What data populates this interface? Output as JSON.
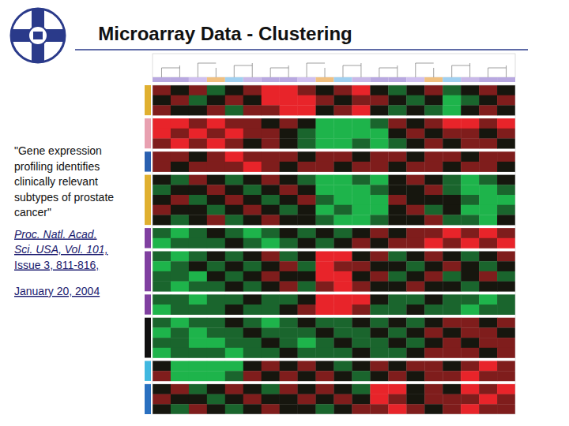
{
  "slide": {
    "title": "Microarray Data - Clustering",
    "caption": [
      "\"Gene expression",
      "profiling identifies",
      "clinically relevant",
      "subtypes of prostate",
      "cancer\""
    ],
    "citation": [
      "Proc. Natl. Acad.",
      "Sci. USA, Vol. 101,",
      "Issue 3, 811-816,"
    ],
    "date": "January 20, 2004"
  },
  "chart_data": {
    "type": "heatmap",
    "tick_labels": false,
    "color_range": [
      -2,
      2
    ],
    "bands": [
      {
        "color": "#e0b030",
        "cells": [
          [
            1,
            0,
            1,
            -1,
            0,
            1,
            2,
            2,
            1,
            0,
            1,
            2,
            0,
            -1,
            0,
            1,
            -1,
            0,
            1,
            0
          ],
          [
            0,
            1,
            -1,
            0,
            1,
            0,
            2,
            2,
            2,
            1,
            0,
            1,
            1,
            0,
            -1,
            0,
            -2,
            -1,
            0,
            1
          ],
          [
            1,
            0,
            0,
            1,
            -1,
            1,
            1,
            2,
            2,
            0,
            1,
            2,
            0,
            -1,
            0,
            -1,
            -2,
            0,
            1,
            0
          ]
        ]
      },
      {
        "color": "#e8a0b0",
        "cells": [
          [
            2,
            2,
            1,
            2,
            1,
            1,
            0,
            1,
            0,
            -2,
            -2,
            -2,
            -1,
            1,
            0,
            1,
            2,
            2,
            1,
            2
          ],
          [
            2,
            1,
            2,
            1,
            2,
            1,
            1,
            0,
            -1,
            -2,
            -2,
            -2,
            -2,
            0,
            1,
            0,
            1,
            1,
            0,
            1
          ],
          [
            1,
            2,
            1,
            2,
            1,
            0,
            1,
            0,
            -1,
            -2,
            -2,
            -1,
            -2,
            -1,
            0,
            1,
            0,
            1,
            1,
            0
          ]
        ]
      },
      {
        "color": "#2a60b0",
        "cells": [
          [
            1,
            1,
            0,
            1,
            2,
            1,
            1,
            1,
            0,
            1,
            1,
            0,
            1,
            1,
            0,
            1,
            1,
            0,
            1,
            1
          ],
          [
            1,
            0,
            1,
            1,
            1,
            2,
            1,
            0,
            1,
            1,
            0,
            1,
            1,
            0,
            1,
            1,
            0,
            1,
            1,
            0
          ]
        ]
      },
      {
        "color": "#e0b030",
        "cells": [
          [
            0,
            -1,
            1,
            0,
            -1,
            0,
            1,
            0,
            -1,
            -2,
            -2,
            -1,
            -2,
            0,
            1,
            0,
            -1,
            -2,
            -1,
            0
          ],
          [
            -1,
            0,
            0,
            1,
            0,
            -1,
            0,
            1,
            0,
            -2,
            -2,
            -2,
            -1,
            0,
            0,
            1,
            -1,
            -2,
            -2,
            -1
          ],
          [
            0,
            1,
            -1,
            0,
            1,
            0,
            -1,
            0,
            1,
            -1,
            -2,
            -2,
            -2,
            1,
            0,
            0,
            0,
            -1,
            -2,
            -2
          ],
          [
            1,
            0,
            0,
            -1,
            0,
            1,
            0,
            -1,
            0,
            -2,
            -1,
            -2,
            -2,
            0,
            1,
            -1,
            0,
            -2,
            -2,
            -1
          ],
          [
            0,
            -1,
            0,
            1,
            -1,
            0,
            1,
            0,
            0,
            -1,
            -2,
            -2,
            -1,
            0,
            0,
            1,
            -1,
            -1,
            -2,
            0
          ]
        ]
      },
      {
        "color": "#8040a0",
        "cells": [
          [
            -1,
            -2,
            -1,
            0,
            -1,
            -2,
            -1,
            0,
            -1,
            0,
            -1,
            0,
            1,
            0,
            1,
            1,
            2,
            1,
            2,
            1
          ],
          [
            -2,
            -1,
            -1,
            -1,
            0,
            -1,
            -2,
            -1,
            0,
            -1,
            0,
            1,
            0,
            1,
            1,
            2,
            1,
            2,
            1,
            2
          ]
        ]
      },
      {
        "color": "#8040a0",
        "cells": [
          [
            -1,
            -2,
            -1,
            0,
            -1,
            0,
            1,
            -1,
            0,
            2,
            2,
            0,
            1,
            -1,
            0,
            1,
            0,
            -1,
            0,
            1
          ],
          [
            -2,
            -1,
            0,
            -1,
            0,
            -1,
            0,
            1,
            -1,
            2,
            1,
            1,
            0,
            0,
            -1,
            0,
            1,
            0,
            -1,
            0
          ],
          [
            -1,
            -1,
            -2,
            0,
            -1,
            0,
            1,
            0,
            0,
            2,
            2,
            0,
            1,
            -1,
            0,
            1,
            -1,
            0,
            1,
            -1
          ],
          [
            -1,
            -2,
            -1,
            -1,
            0,
            -1,
            0,
            1,
            -1,
            1,
            2,
            1,
            0,
            0,
            1,
            0,
            0,
            -1,
            0,
            0
          ]
        ]
      },
      {
        "color": "#8040a0",
        "cells": [
          [
            -1,
            -1,
            -2,
            -1,
            -1,
            0,
            -1,
            -1,
            0,
            2,
            2,
            2,
            0,
            -1,
            -1,
            0,
            -1,
            -1,
            -2,
            -1
          ],
          [
            -2,
            -1,
            -1,
            -1,
            0,
            -1,
            -1,
            0,
            1,
            2,
            2,
            1,
            -1,
            -1,
            0,
            -1,
            -1,
            -2,
            -1,
            -1
          ]
        ]
      },
      {
        "color": "#101010",
        "cells": [
          [
            -1,
            -2,
            -1,
            -1,
            0,
            -1,
            -2,
            -1,
            0,
            -1,
            -1,
            0,
            -1,
            0,
            -1,
            0,
            1,
            1,
            0,
            1
          ],
          [
            -2,
            -1,
            -2,
            -1,
            -1,
            0,
            -1,
            -1,
            -1,
            0,
            -1,
            -1,
            0,
            -1,
            0,
            1,
            0,
            1,
            1,
            0
          ],
          [
            -1,
            -1,
            -2,
            -2,
            -1,
            -1,
            0,
            -1,
            -2,
            -1,
            0,
            -1,
            -1,
            0,
            -1,
            0,
            1,
            0,
            1,
            1
          ],
          [
            -2,
            -1,
            -1,
            -1,
            -2,
            -1,
            -1,
            0,
            -1,
            -1,
            -1,
            0,
            -1,
            -1,
            0,
            1,
            1,
            1,
            0,
            1
          ]
        ]
      },
      {
        "color": "#40b8e0",
        "cells": [
          [
            0,
            -2,
            -2,
            -2,
            -2,
            0,
            1,
            0,
            1,
            0,
            -1,
            0,
            1,
            0,
            1,
            1,
            0,
            1,
            2,
            1
          ],
          [
            1,
            -2,
            -2,
            -2,
            -1,
            1,
            0,
            1,
            0,
            1,
            0,
            -1,
            0,
            1,
            0,
            1,
            1,
            2,
            1,
            1
          ]
        ]
      },
      {
        "color": "#2a70c0",
        "cells": [
          [
            0,
            1,
            -1,
            0,
            1,
            0,
            -1,
            1,
            0,
            1,
            0,
            -1,
            2,
            2,
            0,
            1,
            0,
            2,
            1,
            2
          ],
          [
            1,
            0,
            0,
            -1,
            0,
            1,
            0,
            0,
            1,
            0,
            1,
            0,
            2,
            1,
            0,
            1,
            1,
            1,
            2,
            1
          ],
          [
            0,
            -1,
            1,
            0,
            -1,
            0,
            1,
            0,
            0,
            -1,
            0,
            1,
            1,
            2,
            1,
            0,
            1,
            2,
            1,
            1
          ]
        ]
      }
    ]
  }
}
